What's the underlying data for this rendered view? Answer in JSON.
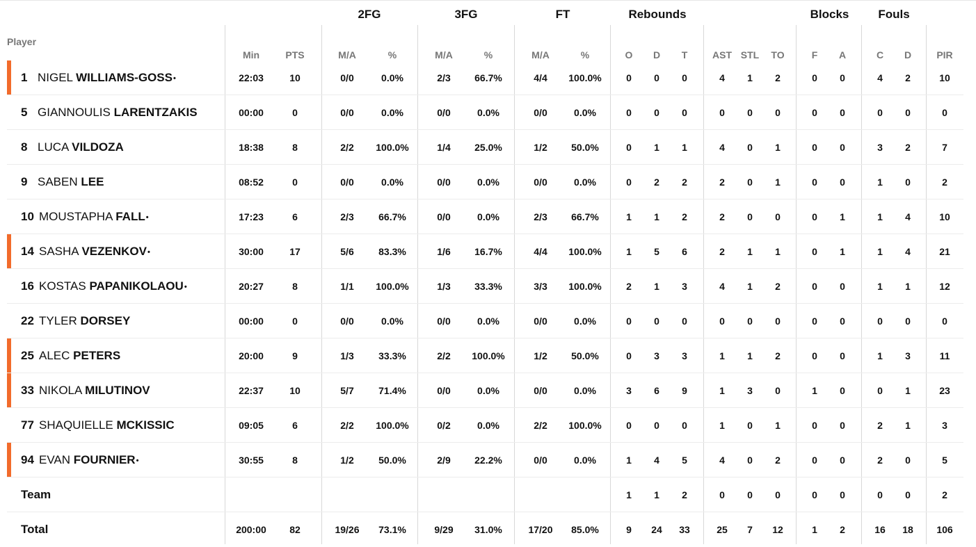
{
  "header": {
    "player": "Player",
    "groups": [
      {
        "label": "2FG",
        "x": 467,
        "w": 128
      },
      {
        "label": "3FG",
        "x": 605,
        "w": 130
      },
      {
        "label": "FT",
        "x": 743,
        "w": 132
      },
      {
        "label": "Rebounds",
        "x": 880,
        "w": 130
      },
      {
        "label": "Blocks",
        "x": 1150,
        "w": 85
      },
      {
        "label": "Fouls",
        "x": 1240,
        "w": 90
      }
    ],
    "columns": [
      "Min",
      "PTS",
      "M/A",
      "%",
      "M/A",
      "%",
      "M/A",
      "%",
      "O",
      "D",
      "T",
      "AST",
      "STL",
      "TO",
      "F",
      "A",
      "C",
      "D",
      "PIR"
    ]
  },
  "players": [
    {
      "num": "1",
      "first": "NIGEL",
      "last": "WILLIAMS-GOSS",
      "starter": true,
      "stats": [
        "22:03",
        "10",
        "0/0",
        "0.0%",
        "2/3",
        "66.7%",
        "4/4",
        "100.0%",
        "0",
        "0",
        "0",
        "4",
        "1",
        "2",
        "0",
        "0",
        "4",
        "2",
        "10"
      ]
    },
    {
      "num": "5",
      "first": "GIANNOULIS",
      "last": "LARENTZAKIS",
      "starter": false,
      "stats": [
        "00:00",
        "0",
        "0/0",
        "0.0%",
        "0/0",
        "0.0%",
        "0/0",
        "0.0%",
        "0",
        "0",
        "0",
        "0",
        "0",
        "0",
        "0",
        "0",
        "0",
        "0",
        "0"
      ]
    },
    {
      "num": "8",
      "first": "LUCA",
      "last": "VILDOZA",
      "starter": false,
      "stats": [
        "18:38",
        "8",
        "2/2",
        "100.0%",
        "1/4",
        "25.0%",
        "1/2",
        "50.0%",
        "0",
        "1",
        "1",
        "4",
        "0",
        "1",
        "0",
        "0",
        "3",
        "2",
        "7"
      ]
    },
    {
      "num": "9",
      "first": "SABEN",
      "last": "LEE",
      "starter": false,
      "stats": [
        "08:52",
        "0",
        "0/0",
        "0.0%",
        "0/0",
        "0.0%",
        "0/0",
        "0.0%",
        "0",
        "2",
        "2",
        "2",
        "0",
        "1",
        "0",
        "0",
        "1",
        "0",
        "2"
      ]
    },
    {
      "num": "10",
      "first": "MOUSTAPHA",
      "last": "FALL",
      "starter": false,
      "stats": [
        "17:23",
        "6",
        "2/3",
        "66.7%",
        "0/0",
        "0.0%",
        "2/3",
        "66.7%",
        "1",
        "1",
        "2",
        "2",
        "0",
        "0",
        "0",
        "1",
        "1",
        "4",
        "10"
      ]
    },
    {
      "num": "14",
      "first": "SASHA",
      "last": "VEZENKOV",
      "starter": true,
      "stats": [
        "30:00",
        "17",
        "5/6",
        "83.3%",
        "1/6",
        "16.7%",
        "4/4",
        "100.0%",
        "1",
        "5",
        "6",
        "2",
        "1",
        "1",
        "0",
        "1",
        "1",
        "4",
        "21"
      ]
    },
    {
      "num": "16",
      "first": "KOSTAS",
      "last": "PAPANIKOLAOU",
      "starter": false,
      "stats": [
        "20:27",
        "8",
        "1/1",
        "100.0%",
        "1/3",
        "33.3%",
        "3/3",
        "100.0%",
        "2",
        "1",
        "3",
        "4",
        "1",
        "2",
        "0",
        "0",
        "1",
        "1",
        "12"
      ]
    },
    {
      "num": "22",
      "first": "TYLER",
      "last": "DORSEY",
      "starter": false,
      "stats": [
        "00:00",
        "0",
        "0/0",
        "0.0%",
        "0/0",
        "0.0%",
        "0/0",
        "0.0%",
        "0",
        "0",
        "0",
        "0",
        "0",
        "0",
        "0",
        "0",
        "0",
        "0",
        "0"
      ]
    },
    {
      "num": "25",
      "first": "ALEC",
      "last": "PETERS",
      "starter": true,
      "stats": [
        "20:00",
        "9",
        "1/3",
        "33.3%",
        "2/2",
        "100.0%",
        "1/2",
        "50.0%",
        "0",
        "3",
        "3",
        "1",
        "1",
        "2",
        "0",
        "0",
        "1",
        "3",
        "11"
      ]
    },
    {
      "num": "33",
      "first": "NIKOLA",
      "last": "MILUTINOV",
      "starter": true,
      "stats": [
        "22:37",
        "10",
        "5/7",
        "71.4%",
        "0/0",
        "0.0%",
        "0/0",
        "0.0%",
        "3",
        "6",
        "9",
        "1",
        "3",
        "0",
        "1",
        "0",
        "0",
        "1",
        "23"
      ]
    },
    {
      "num": "77",
      "first": "SHAQUIELLE",
      "last": "MCKISSIC",
      "starter": false,
      "stats": [
        "09:05",
        "6",
        "2/2",
        "100.0%",
        "0/2",
        "0.0%",
        "2/2",
        "100.0%",
        "0",
        "0",
        "0",
        "1",
        "0",
        "1",
        "0",
        "0",
        "2",
        "1",
        "3"
      ]
    },
    {
      "num": "94",
      "first": "EVAN",
      "last": "FOURNIER",
      "starter": true,
      "stats": [
        "30:55",
        "8",
        "1/2",
        "50.0%",
        "2/9",
        "22.2%",
        "0/0",
        "0.0%",
        "1",
        "4",
        "5",
        "4",
        "0",
        "2",
        "0",
        "0",
        "2",
        "0",
        "5"
      ]
    }
  ],
  "team": {
    "label": "Team",
    "stats": [
      "",
      "",
      "",
      "",
      "",
      "",
      "",
      "",
      "1",
      "1",
      "2",
      "0",
      "0",
      "0",
      "0",
      "0",
      "0",
      "0",
      "2"
    ]
  },
  "total": {
    "label": "Total",
    "stats": [
      "200:00",
      "82",
      "19/26",
      "73.1%",
      "9/29",
      "31.0%",
      "17/20",
      "85.0%",
      "9",
      "24",
      "33",
      "25",
      "7",
      "12",
      "1",
      "2",
      "16",
      "18",
      "106"
    ]
  },
  "dot": "•",
  "starters": [
    "1",
    "14",
    "25",
    "33",
    "94"
  ],
  "dotted": [
    "1",
    "10",
    "14",
    "16",
    "94"
  ],
  "accent": "#f26b2b"
}
